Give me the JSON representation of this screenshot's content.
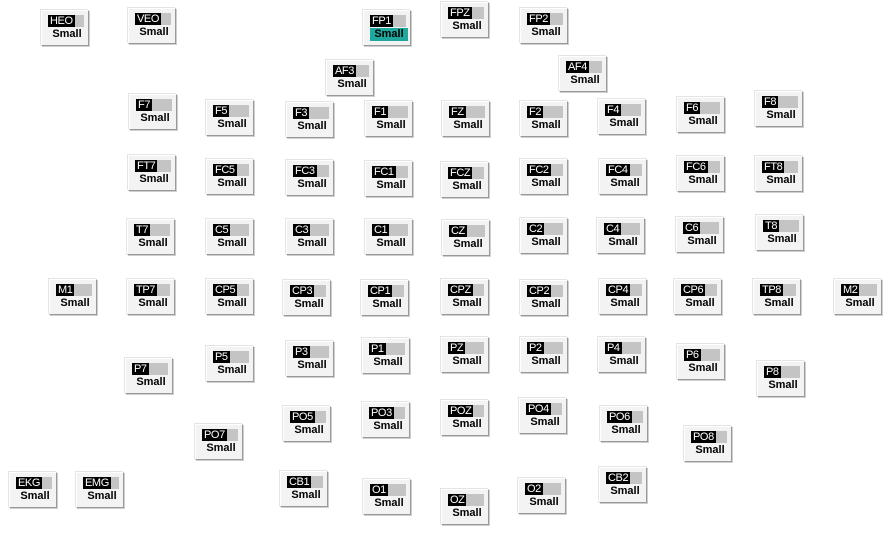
{
  "size_selected_color": "#1fa89e",
  "channels": [
    {
      "name": "HEO",
      "size": "Small"
    },
    {
      "name": "VEO",
      "size": "Small"
    },
    {
      "name": "FP1",
      "size": "Small",
      "selected": true
    },
    {
      "name": "FPZ",
      "size": "Small"
    },
    {
      "name": "FP2",
      "size": "Small"
    },
    {
      "name": "AF3",
      "size": "Small"
    },
    {
      "name": "AF4",
      "size": "Small"
    },
    {
      "name": "F7",
      "size": "Small"
    },
    {
      "name": "F5",
      "size": "Small"
    },
    {
      "name": "F3",
      "size": "Small"
    },
    {
      "name": "F1",
      "size": "Small"
    },
    {
      "name": "FZ",
      "size": "Small"
    },
    {
      "name": "F2",
      "size": "Small"
    },
    {
      "name": "F4",
      "size": "Small"
    },
    {
      "name": "F6",
      "size": "Small"
    },
    {
      "name": "F8",
      "size": "Small"
    },
    {
      "name": "FT7",
      "size": "Small"
    },
    {
      "name": "FC5",
      "size": "Small"
    },
    {
      "name": "FC3",
      "size": "Small"
    },
    {
      "name": "FC1",
      "size": "Small"
    },
    {
      "name": "FCZ",
      "size": "Small"
    },
    {
      "name": "FC2",
      "size": "Small"
    },
    {
      "name": "FC4",
      "size": "Small"
    },
    {
      "name": "FC6",
      "size": "Small"
    },
    {
      "name": "FT8",
      "size": "Small"
    },
    {
      "name": "T7",
      "size": "Small"
    },
    {
      "name": "C5",
      "size": "Small"
    },
    {
      "name": "C3",
      "size": "Small"
    },
    {
      "name": "C1",
      "size": "Small"
    },
    {
      "name": "CZ",
      "size": "Small"
    },
    {
      "name": "C2",
      "size": "Small"
    },
    {
      "name": "C4",
      "size": "Small"
    },
    {
      "name": "C6",
      "size": "Small"
    },
    {
      "name": "T8",
      "size": "Small"
    },
    {
      "name": "M1",
      "size": "Small"
    },
    {
      "name": "TP7",
      "size": "Small"
    },
    {
      "name": "CP5",
      "size": "Small"
    },
    {
      "name": "CP3",
      "size": "Small"
    },
    {
      "name": "CP1",
      "size": "Small"
    },
    {
      "name": "CPZ",
      "size": "Small"
    },
    {
      "name": "CP2",
      "size": "Small"
    },
    {
      "name": "CP4",
      "size": "Small"
    },
    {
      "name": "CP6",
      "size": "Small"
    },
    {
      "name": "TP8",
      "size": "Small"
    },
    {
      "name": "M2",
      "size": "Small"
    },
    {
      "name": "P7",
      "size": "Small"
    },
    {
      "name": "P5",
      "size": "Small"
    },
    {
      "name": "P3",
      "size": "Small"
    },
    {
      "name": "P1",
      "size": "Small"
    },
    {
      "name": "PZ",
      "size": "Small"
    },
    {
      "name": "P2",
      "size": "Small"
    },
    {
      "name": "P4",
      "size": "Small"
    },
    {
      "name": "P6",
      "size": "Small"
    },
    {
      "name": "P8",
      "size": "Small"
    },
    {
      "name": "PO7",
      "size": "Small"
    },
    {
      "name": "PO5",
      "size": "Small"
    },
    {
      "name": "PO3",
      "size": "Small"
    },
    {
      "name": "POZ",
      "size": "Small"
    },
    {
      "name": "PO4",
      "size": "Small"
    },
    {
      "name": "PO6",
      "size": "Small"
    },
    {
      "name": "PO8",
      "size": "Small"
    },
    {
      "name": "EKG",
      "size": "Small"
    },
    {
      "name": "EMG",
      "size": "Small"
    },
    {
      "name": "CB1",
      "size": "Small"
    },
    {
      "name": "O1",
      "size": "Small"
    },
    {
      "name": "OZ",
      "size": "Small"
    },
    {
      "name": "O2",
      "size": "Small"
    },
    {
      "name": "CB2",
      "size": "Small"
    }
  ]
}
